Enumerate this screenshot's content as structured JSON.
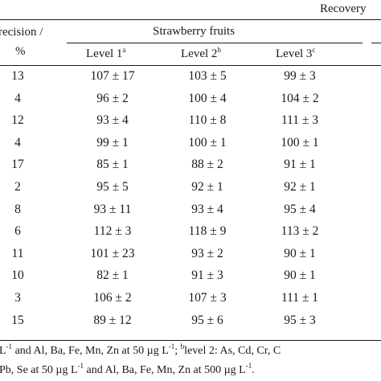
{
  "header": {
    "col1_line1": "recision /",
    "col1_line2": "%",
    "recovery_label": "Recovery",
    "group_label": "Strawberry fruits",
    "levels": [
      {
        "label": "Level 1",
        "sup": "a"
      },
      {
        "label": "Level 2",
        "sup": "b"
      },
      {
        "label": "Level 3",
        "sup": "c"
      }
    ]
  },
  "rows": [
    {
      "precision": "13",
      "l1": "107 ± 17",
      "l2": "103 ± 5",
      "l3": "99 ± 3"
    },
    {
      "precision": "4",
      "l1": "96 ± 2",
      "l2": "100 ± 4",
      "l3": "104 ± 2"
    },
    {
      "precision": "12",
      "l1": "93 ± 4",
      "l2": "110 ± 8",
      "l3": "111 ± 3"
    },
    {
      "precision": "4",
      "l1": "99 ± 1",
      "l2": "100 ± 1",
      "l3": "100 ± 1"
    },
    {
      "precision": "17",
      "l1": "85 ± 1",
      "l2": "88 ± 2",
      "l3": "91 ± 1"
    },
    {
      "precision": "2",
      "l1": "95 ± 5",
      "l2": "92 ± 1",
      "l3": "92 ± 1"
    },
    {
      "precision": "8",
      "l1": "93 ± 11",
      "l2": "93 ± 4",
      "l3": "95 ± 4"
    },
    {
      "precision": "6",
      "l1": "112 ± 3",
      "l2": "118 ± 9",
      "l3": "113 ± 2"
    },
    {
      "precision": "11",
      "l1": "101 ± 23",
      "l2": "93 ± 2",
      "l3": "90 ± 1"
    },
    {
      "precision": "10",
      "l1": "82 ± 1",
      "l2": "91 ± 3",
      "l3": "90 ± 1"
    },
    {
      "precision": "3",
      "l1": "106 ± 2",
      "l2": "107 ± 3",
      "l3": "111 ± 1"
    },
    {
      "precision": "15",
      "l1": "89 ± 12",
      "l2": "95 ± 6",
      "l3": "95 ± 3"
    }
  ],
  "footnote": {
    "line1_a": "L",
    "line1_sup1": "-1",
    "line1_b": " and Al, Ba, Fe, Mn, Zn at 50 µg L",
    "line1_sup2": "-1",
    "line1_c": "; ",
    "line1_sup3": "b",
    "line1_d": "level 2: As, Cd, Cr, C",
    "line2_a": "Pb, Se at 50 µg L",
    "line2_sup1": "-1",
    "line2_b": " and Al, Ba, Fe, Mn, Zn at 500 µg L",
    "line2_sup2": "-1",
    "line2_c": "."
  }
}
